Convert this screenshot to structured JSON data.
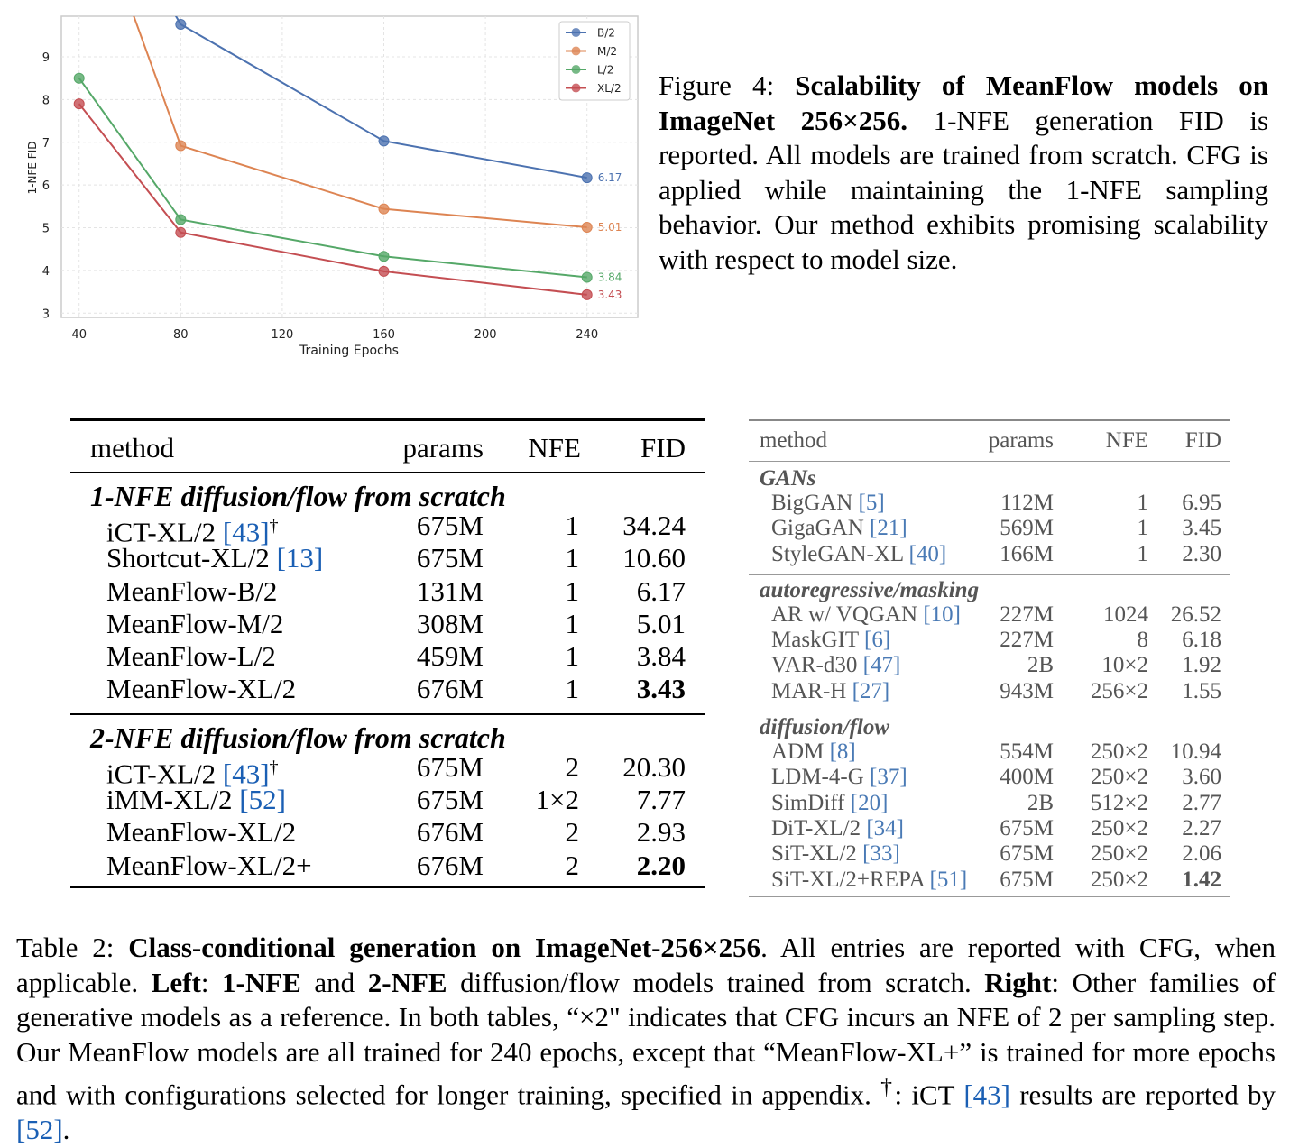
{
  "chart_data": {
    "type": "line",
    "x": [
      40,
      80,
      160,
      240
    ],
    "series": [
      {
        "name": "B/2",
        "values": [
          null,
          9.76,
          7.03,
          6.17
        ],
        "color": "#4c72b0",
        "label": "6.17"
      },
      {
        "name": "M/2",
        "values": [
          null,
          6.92,
          5.44,
          5.01
        ],
        "color": "#dd8452",
        "label": "5.01"
      },
      {
        "name": "L/2",
        "values": [
          8.5,
          5.19,
          4.33,
          3.84
        ],
        "color": "#55a868",
        "label": "3.84"
      },
      {
        "name": "XL/2",
        "values": [
          7.9,
          4.89,
          3.98,
          3.43
        ],
        "color": "#c44e52",
        "label": "3.43"
      }
    ],
    "offscreen_segments": [
      {
        "series": "B/2",
        "from": [
          80,
          9.76
        ],
        "toward": [
          63,
          11.5
        ]
      },
      {
        "series": "M/2",
        "from": [
          80,
          6.92
        ],
        "toward": [
          46,
          12.5
        ]
      }
    ],
    "xlabel": "Training Epochs",
    "ylabel": "1-NFE FID",
    "xticks": [
      "40",
      "80",
      "120",
      "160",
      "200",
      "240"
    ],
    "yticks": [
      "3",
      "4",
      "5",
      "6",
      "7",
      "8",
      "9"
    ],
    "xlim": [
      33,
      260
    ],
    "ylim": [
      2.9,
      9.95
    ],
    "grid": true,
    "legend": "top-right"
  },
  "figure_caption": {
    "prefix": "Figure 4: ",
    "bold": "Scalability of MeanFlow models on ImageNet 256×256.",
    "text": " 1-NFE generation FID is reported. All models are trained from scratch. CFG is applied while maintaining the 1-NFE sampling behavior. Our method exhibits promising scalability with respect to model size."
  },
  "left_table": {
    "headers": {
      "method": "method",
      "params": "params",
      "nfe": "NFE",
      "fid": "FID"
    },
    "groups": [
      {
        "title": "1-NFE diffusion/flow from scratch",
        "rows": [
          {
            "name": "iCT-XL/2 ",
            "cite": "[43]",
            "dagger": "†",
            "params": "675M",
            "nfe": "1",
            "fid": "34.24",
            "bold": false
          },
          {
            "name": "Shortcut-XL/2 ",
            "cite": "[13]",
            "dagger": "",
            "params": "675M",
            "nfe": "1",
            "fid": "10.60",
            "bold": false
          },
          {
            "name": "MeanFlow-B/2",
            "cite": "",
            "dagger": "",
            "params": "131M",
            "nfe": "1",
            "fid": "6.17",
            "bold": false
          },
          {
            "name": "MeanFlow-M/2",
            "cite": "",
            "dagger": "",
            "params": "308M",
            "nfe": "1",
            "fid": "5.01",
            "bold": false
          },
          {
            "name": "MeanFlow-L/2",
            "cite": "",
            "dagger": "",
            "params": "459M",
            "nfe": "1",
            "fid": "3.84",
            "bold": false
          },
          {
            "name": "MeanFlow-XL/2",
            "cite": "",
            "dagger": "",
            "params": "676M",
            "nfe": "1",
            "fid": "3.43",
            "bold": true
          }
        ]
      },
      {
        "title": "2-NFE diffusion/flow from scratch",
        "rows": [
          {
            "name": "iCT-XL/2 ",
            "cite": "[43]",
            "dagger": "†",
            "params": "675M",
            "nfe": "2",
            "fid": "20.30",
            "bold": false
          },
          {
            "name": "iMM-XL/2 ",
            "cite": "[52]",
            "dagger": "",
            "params": "675M",
            "nfe": "1×2",
            "fid": "7.77",
            "bold": false
          },
          {
            "name": "MeanFlow-XL/2",
            "cite": "",
            "dagger": "",
            "params": "676M",
            "nfe": "2",
            "fid": "2.93",
            "bold": false
          },
          {
            "name": "MeanFlow-XL/2+",
            "cite": "",
            "dagger": "",
            "params": "676M",
            "nfe": "2",
            "fid": "2.20",
            "bold": true
          }
        ]
      }
    ]
  },
  "right_table": {
    "headers": {
      "method": "method",
      "params": "params",
      "nfe": "NFE",
      "fid": "FID"
    },
    "groups": [
      {
        "title": "GANs",
        "rows": [
          {
            "name": "BigGAN ",
            "cite": "[5]",
            "params": "112M",
            "nfe": "1",
            "fid": "6.95",
            "bold": false
          },
          {
            "name": "GigaGAN ",
            "cite": "[21]",
            "params": "569M",
            "nfe": "1",
            "fid": "3.45",
            "bold": false
          },
          {
            "name": "StyleGAN-XL ",
            "cite": "[40]",
            "params": "166M",
            "nfe": "1",
            "fid": "2.30",
            "bold": false
          }
        ]
      },
      {
        "title": "autoregressive/masking",
        "rows": [
          {
            "name": "AR w/ VQGAN ",
            "cite": "[10]",
            "params": "227M",
            "nfe": "1024",
            "fid": "26.52",
            "bold": false
          },
          {
            "name": "MaskGIT ",
            "cite": "[6]",
            "params": "227M",
            "nfe": "8",
            "fid": "6.18",
            "bold": false
          },
          {
            "name": "VAR-d30 ",
            "cite": "[47]",
            "params": "2B",
            "nfe": "10×2",
            "fid": "1.92",
            "bold": false
          },
          {
            "name": "MAR-H ",
            "cite": "[27]",
            "params": "943M",
            "nfe": "256×2",
            "fid": "1.55",
            "bold": false
          }
        ]
      },
      {
        "title": "diffusion/flow",
        "rows": [
          {
            "name": "ADM ",
            "cite": "[8]",
            "params": "554M",
            "nfe": "250×2",
            "fid": "10.94",
            "bold": false
          },
          {
            "name": "LDM-4-G ",
            "cite": "[37]",
            "params": "400M",
            "nfe": "250×2",
            "fid": "3.60",
            "bold": false
          },
          {
            "name": "SimDiff ",
            "cite": "[20]",
            "params": "2B",
            "nfe": "512×2",
            "fid": "2.77",
            "bold": false
          },
          {
            "name": "DiT-XL/2 ",
            "cite": "[34]",
            "params": "675M",
            "nfe": "250×2",
            "fid": "2.27",
            "bold": false
          },
          {
            "name": "SiT-XL/2 ",
            "cite": "[33]",
            "params": "675M",
            "nfe": "250×2",
            "fid": "2.06",
            "bold": false
          },
          {
            "name": "SiT-XL/2+REPA ",
            "cite": "[51]",
            "params": "675M",
            "nfe": "250×2",
            "fid": "1.42",
            "bold": true
          }
        ]
      }
    ]
  },
  "table_caption": {
    "t1": "Table 2: ",
    "t2": "Class-conditional generation on ImageNet-256×256",
    "t3": ". All entries are reported with CFG, when applicable. ",
    "t4": "Left",
    "t5": ": ",
    "t6": "1-NFE",
    "t7": " and ",
    "t8": "2-NFE",
    "t9": " diffusion/flow models trained from scratch. ",
    "t10": "Right",
    "t11": ": Other families of generative models as a reference. In both tables, “×2\" indicates that CFG incurs an NFE of 2 per sampling step. Our MeanFlow models are all trained for 240 epochs, except that “MeanFlow-XL+” is trained for more epochs and with configurations selected for longer training, specified in appendix. ",
    "t12": "†",
    "t13": ": iCT ",
    "t14": "[43]",
    "t15": " results are reported by ",
    "t16": "[52]",
    "t17": "."
  }
}
